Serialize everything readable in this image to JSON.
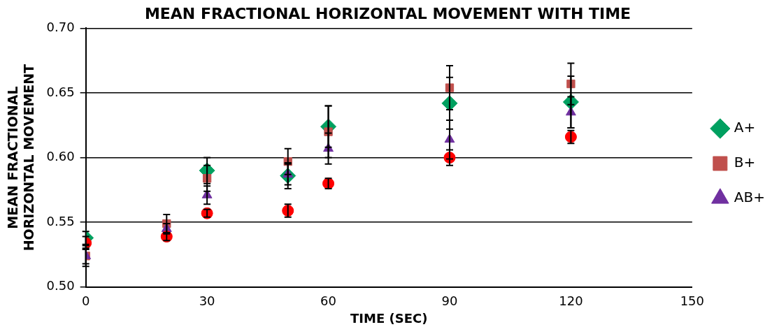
{
  "chart_data": {
    "type": "scatter",
    "title": "MEAN FRACTIONAL HORIZONTAL MOVEMENT WITH TIME",
    "xlabel": "TIME (SEC)",
    "ylabel": "MEAN FRACTIONAL HORIZONTAL MOVEMENT",
    "xlim": [
      0,
      150
    ],
    "xticks": [
      0,
      30,
      60,
      90,
      120,
      150
    ],
    "ylim": [
      0.5,
      0.7
    ],
    "yticks": [
      {
        "value": 0.5,
        "label": "0.50"
      },
      {
        "value": 0.55,
        "label": "0.55"
      },
      {
        "value": 0.6,
        "label": "0.60"
      },
      {
        "value": 0.65,
        "label": "0.65"
      },
      {
        "value": 0.7,
        "label": "0.70"
      }
    ],
    "grid": "y",
    "legend": "right",
    "series": [
      {
        "name": "A+",
        "color": "#00a060",
        "marker": "diamond",
        "x": [
          0,
          20,
          30,
          50,
          60,
          90,
          120
        ],
        "values": [
          0.538,
          null,
          0.59,
          0.586,
          0.624,
          0.642,
          0.643
        ],
        "errors": [
          0.005,
          null,
          0.01,
          0.01,
          0.016,
          0.02,
          0.02
        ]
      },
      {
        "name": "B+",
        "color": "#c0504d",
        "marker": "square",
        "x": [
          0,
          20,
          30,
          50,
          60,
          90,
          120
        ],
        "values": [
          0.524,
          0.549,
          0.584,
          0.597,
          0.62,
          0.654,
          0.657
        ],
        "errors": [
          0.006,
          0.007,
          0.01,
          0.01,
          0.02,
          0.017,
          0.016
        ]
      },
      {
        "name": "AB+",
        "color": "#7030a0",
        "marker": "triangle",
        "x": [
          0,
          20,
          30,
          50,
          60,
          90,
          120
        ],
        "values": [
          0.524,
          0.545,
          0.571,
          0.587,
          0.607,
          0.614,
          0.635
        ],
        "errors": [
          0.008,
          0.004,
          0.007,
          0.008,
          0.012,
          0.015,
          0.012
        ]
      },
      {
        "color": "#ff0000",
        "marker": "circle",
        "x": [
          0,
          20,
          30,
          50,
          60,
          90,
          120
        ],
        "values": [
          0.534,
          0.539,
          0.557,
          0.559,
          0.58,
          0.6,
          0.616
        ],
        "errors": [
          0.005,
          0.003,
          0.003,
          0.005,
          0.004,
          0.006,
          0.005
        ]
      }
    ]
  }
}
